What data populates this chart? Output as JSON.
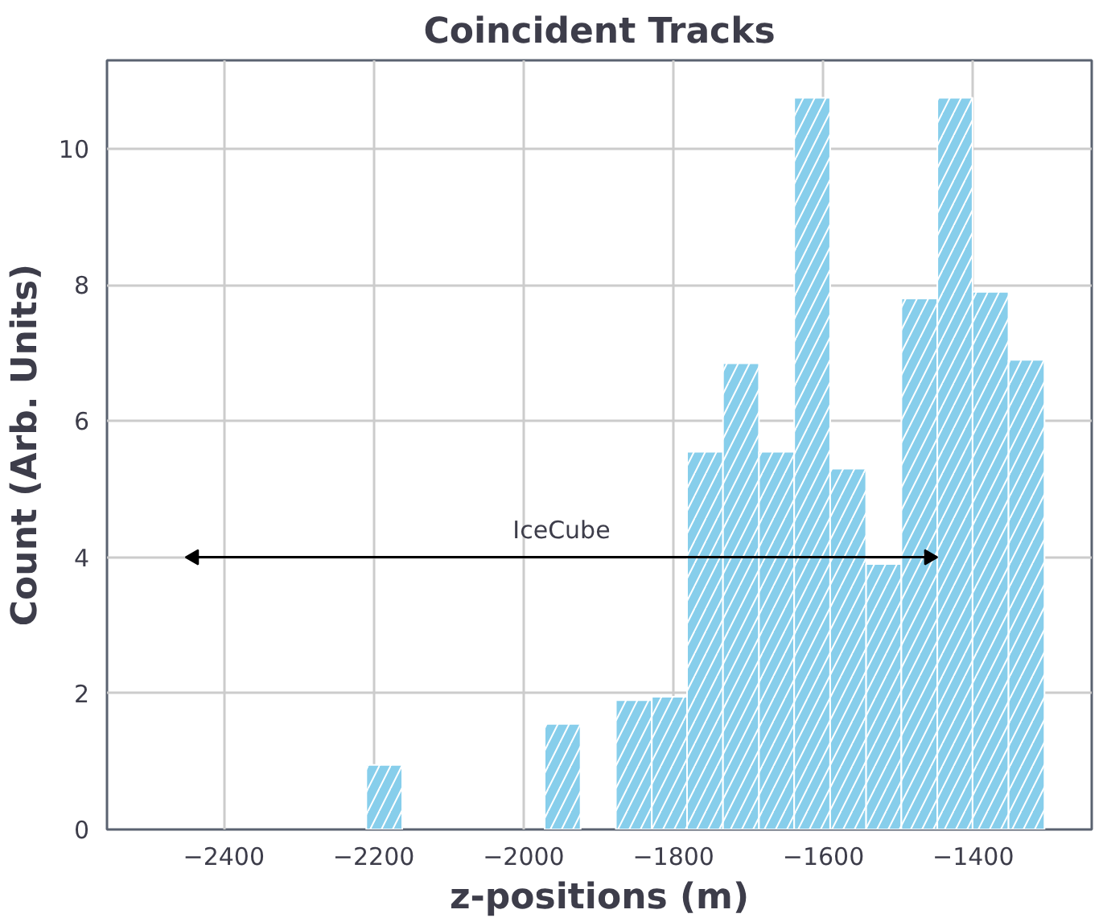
{
  "chart_data": {
    "type": "histogram",
    "title": "Coincident Tracks",
    "xlabel": "z-positions (m)",
    "ylabel": "Count (Arb. Units)",
    "bins": [
      -2210,
      -2162,
      -1972,
      -1924,
      -1877,
      -1829,
      -1782,
      -1734,
      -1686,
      -1639,
      -1591,
      -1543,
      -1496,
      -1448,
      -1401,
      -1353,
      -1305
    ],
    "values": [
      0.95,
      0,
      1.55,
      0,
      1.9,
      1.95,
      5.55,
      6.85,
      5.55,
      10.75,
      5.3,
      3.9,
      7.8,
      10.75,
      7.9,
      6.9
    ],
    "color": "#87ceeb",
    "series": [
      {
        "type": "line",
        "name": "IceCube",
        "color": "#000000",
        "marker": "triangle",
        "x": [
          -2440,
          -1459
        ],
        "values": [
          4,
          4
        ]
      }
    ],
    "xlim": [
      -2556,
      -1242
    ],
    "xticks": [
      -2400,
      -2200,
      -2000,
      -1800,
      -1600,
      -1400
    ],
    "ylim": [
      0,
      11.3
    ],
    "yticks": [
      0,
      2,
      4,
      6,
      8,
      10
    ],
    "grid": true
  }
}
